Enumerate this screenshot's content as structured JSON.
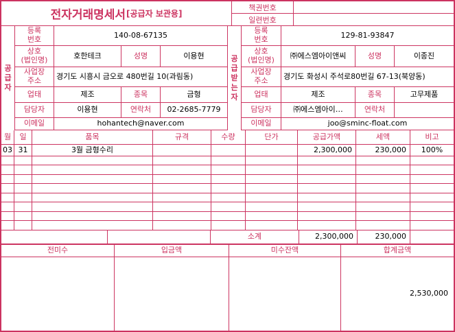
{
  "colors": {
    "accent": "#cc3360",
    "text": "#000000",
    "background": "#ffffff"
  },
  "header": {
    "title": "전자거래명세서",
    "title_suffix": "[공급자 보관용]",
    "book_no_label": "책권번호",
    "book_no_value": "",
    "serial_no_label": "일련번호",
    "serial_no_value": ""
  },
  "labels": {
    "reg_no_l1": "등록",
    "reg_no_l2": "번호",
    "company_l1": "상호",
    "company_l2": "(법인명)",
    "name": "성명",
    "address_l1": "사업장",
    "address_l2": "주소",
    "biz_type": "업태",
    "biz_item": "종목",
    "contact_person": "담당자",
    "contact_info": "연락처",
    "email": "이메일"
  },
  "supplier": {
    "side_label": "공급자",
    "reg_no": "140-08-67135",
    "company": "호한테크",
    "name": "이용현",
    "address": "경기도 시흥시 금오로 480번길 10(과림동)",
    "biz_type": "제조",
    "biz_item": "금형",
    "contact_person": "이용현",
    "contact_info": "02-2685-7779",
    "email": "hohantech@naver.com"
  },
  "buyer": {
    "side_label": "공급받는자",
    "reg_no": "129-81-93847",
    "company": "㈜에스엠아이앤씨",
    "name": "이종진",
    "address": "경기도 화성시 주석로80번길 67-13(북양동)",
    "biz_type": "제조",
    "biz_item": "고무제품",
    "contact_person": "㈜에스엠아이…",
    "contact_info": "",
    "email": "joo@sminc-float.com"
  },
  "table": {
    "headers": [
      "월",
      "일",
      "품목",
      "규격",
      "수량",
      "단가",
      "공급가액",
      "세액",
      "비고"
    ],
    "rows": [
      [
        "03",
        "31",
        "3월 금형수리",
        "",
        "",
        "",
        "2,300,000",
        "230,000",
        "100%"
      ]
    ],
    "empty_row_count": 8,
    "subtotal_label": "소계",
    "subtotal_supply": "2,300,000",
    "subtotal_tax": "230,000"
  },
  "footer": {
    "prev_due_label": "전미수",
    "deposit_label": "입금액",
    "balance_label": "미수잔액",
    "total_label": "합계금액",
    "prev_due_value": "",
    "deposit_value": "",
    "balance_value": "",
    "total_value": "2,530,000"
  }
}
